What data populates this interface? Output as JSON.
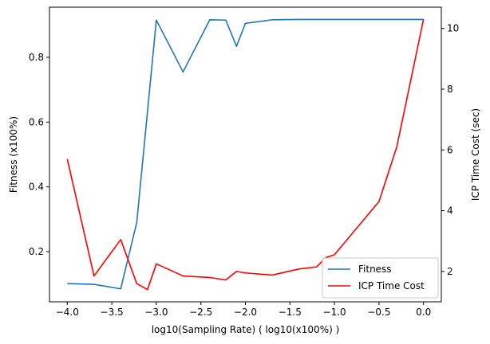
{
  "chart_data": {
    "type": "line",
    "xlabel": "log10(Sampling Rate) ( log10(x100%) )",
    "ylabel_left": "Fitness (x100%)",
    "ylabel_right": "ICP Time Cost (sec)",
    "xlim": [
      -4.2,
      0.2
    ],
    "ylim_left": [
      0.045,
      0.955
    ],
    "ylim_right": [
      1.0,
      10.7
    ],
    "x_ticks": [
      -4.0,
      -3.5,
      -3.0,
      -2.5,
      -2.0,
      -1.5,
      -1.0,
      -0.5,
      0.0
    ],
    "x_tick_labels": [
      "−4.0",
      "−3.5",
      "−3.0",
      "−2.5",
      "−2.0",
      "−1.5",
      "−1.0",
      "−0.5",
      "0.0"
    ],
    "y_left_ticks": [
      0.2,
      0.4,
      0.6,
      0.8
    ],
    "y_left_tick_labels": [
      "0.2",
      "0.4",
      "0.6",
      "0.8"
    ],
    "y_right_ticks": [
      2,
      4,
      6,
      8,
      10
    ],
    "y_right_tick_labels": [
      "2",
      "4",
      "6",
      "8",
      "10"
    ],
    "grid": false,
    "legend_position": "lower-right",
    "series": [
      {
        "name": "Fitness",
        "axis": "left",
        "color": "#1f77b4",
        "points": [
          [
            -4.0,
            0.101
          ],
          [
            -3.7,
            0.099
          ],
          [
            -3.4,
            0.085
          ],
          [
            -3.22,
            0.29
          ],
          [
            -3.0,
            0.915
          ],
          [
            -2.7,
            0.755
          ],
          [
            -2.4,
            0.916
          ],
          [
            -2.22,
            0.915
          ],
          [
            -2.1,
            0.834
          ],
          [
            -2.0,
            0.905
          ],
          [
            -1.7,
            0.916
          ],
          [
            -1.4,
            0.917
          ],
          [
            -1.1,
            0.917
          ],
          [
            -1.0,
            0.917
          ],
          [
            -0.5,
            0.917
          ],
          [
            -0.3,
            0.917
          ],
          [
            0.0,
            0.917
          ]
        ]
      },
      {
        "name": "ICP Time Cost",
        "axis": "right",
        "color": "#ff0000",
        "points": [
          [
            -4.0,
            5.7
          ],
          [
            -3.7,
            1.85
          ],
          [
            -3.4,
            3.05
          ],
          [
            -3.22,
            1.6
          ],
          [
            -3.1,
            1.4
          ],
          [
            -3.0,
            2.25
          ],
          [
            -2.7,
            1.85
          ],
          [
            -2.4,
            1.8
          ],
          [
            -2.22,
            1.72
          ],
          [
            -2.1,
            2.0
          ],
          [
            -2.0,
            1.95
          ],
          [
            -1.7,
            1.88
          ],
          [
            -1.4,
            2.08
          ],
          [
            -1.2,
            2.15
          ],
          [
            -1.1,
            2.45
          ],
          [
            -1.0,
            2.55
          ],
          [
            -0.5,
            4.3
          ],
          [
            -0.3,
            6.1
          ],
          [
            0.0,
            10.3
          ]
        ]
      }
    ]
  }
}
